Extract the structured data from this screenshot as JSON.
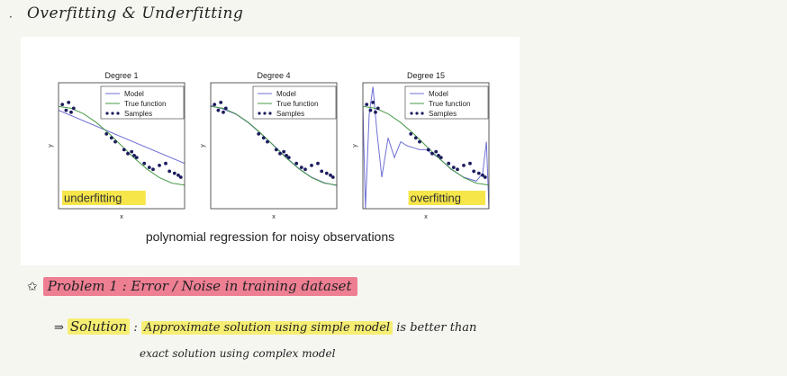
{
  "note": {
    "bullet": "·",
    "title": "Overfitting & Underfitting"
  },
  "figure": {
    "caption": "polynomial regression for noisy observations",
    "legend": {
      "model": "Model",
      "true_function": "True function",
      "samples": "Samples"
    },
    "axis": {
      "x": "x",
      "y": "y"
    },
    "colors": {
      "model": "#6f6fd6",
      "true_function": "#4a9a4a",
      "samples": "#1c1c5e",
      "highlight": "#f6e64a"
    }
  },
  "chart_data": [
    {
      "type": "line",
      "title": "Degree 1",
      "xlabel": "x",
      "ylabel": "y",
      "annotation": "underfitting",
      "legend_position": "top-right",
      "series": [
        {
          "name": "Model",
          "x": [
            0.0,
            1.0
          ],
          "y": [
            0.9,
            -0.45
          ]
        },
        {
          "name": "True function",
          "x": [
            0.0,
            0.1,
            0.2,
            0.3,
            0.4,
            0.5,
            0.6,
            0.7,
            0.8,
            0.9,
            1.0
          ],
          "y": [
            1.0,
            0.95,
            0.81,
            0.59,
            0.31,
            0.0,
            -0.31,
            -0.59,
            -0.81,
            -0.95,
            -1.0
          ]
        }
      ],
      "samples": {
        "name": "Samples",
        "x": [
          0.03,
          0.06,
          0.08,
          0.1,
          0.12,
          0.38,
          0.42,
          0.45,
          0.52,
          0.55,
          0.58,
          0.6,
          0.62,
          0.68,
          0.72,
          0.75,
          0.8,
          0.85,
          0.88,
          0.92,
          0.95,
          0.97
        ],
        "y": [
          1.05,
          0.9,
          1.1,
          0.85,
          0.95,
          0.3,
          0.2,
          0.1,
          -0.1,
          -0.2,
          -0.15,
          -0.25,
          -0.3,
          -0.45,
          -0.55,
          -0.6,
          -0.5,
          -0.45,
          -0.65,
          -0.7,
          -0.75,
          -0.8
        ]
      }
    },
    {
      "type": "line",
      "title": "Degree 4",
      "xlabel": "x",
      "ylabel": "y",
      "legend_position": "top-right",
      "series": [
        {
          "name": "Model",
          "x": [
            0.0,
            0.1,
            0.2,
            0.3,
            0.4,
            0.5,
            0.6,
            0.7,
            0.8,
            0.9,
            1.0
          ],
          "y": [
            1.02,
            0.93,
            0.8,
            0.58,
            0.3,
            0.01,
            -0.3,
            -0.58,
            -0.8,
            -0.94,
            -1.01
          ]
        },
        {
          "name": "True function",
          "x": [
            0.0,
            0.1,
            0.2,
            0.3,
            0.4,
            0.5,
            0.6,
            0.7,
            0.8,
            0.9,
            1.0
          ],
          "y": [
            1.0,
            0.95,
            0.81,
            0.59,
            0.31,
            0.0,
            -0.31,
            -0.59,
            -0.81,
            -0.95,
            -1.0
          ]
        }
      ],
      "samples": {
        "name": "Samples",
        "x": [
          0.03,
          0.06,
          0.08,
          0.1,
          0.12,
          0.38,
          0.42,
          0.45,
          0.52,
          0.55,
          0.58,
          0.6,
          0.62,
          0.68,
          0.72,
          0.75,
          0.8,
          0.85,
          0.88,
          0.92,
          0.95,
          0.97
        ],
        "y": [
          1.05,
          0.9,
          1.1,
          0.85,
          0.95,
          0.3,
          0.2,
          0.1,
          -0.1,
          -0.2,
          -0.15,
          -0.25,
          -0.3,
          -0.45,
          -0.55,
          -0.6,
          -0.5,
          -0.45,
          -0.65,
          -0.7,
          -0.75,
          -0.8
        ]
      }
    },
    {
      "type": "line",
      "title": "Degree 15",
      "xlabel": "x",
      "ylabel": "y",
      "annotation": "overfitting",
      "legend_position": "top-right",
      "series": [
        {
          "name": "Model",
          "x": [
            0.0,
            0.02,
            0.05,
            0.08,
            0.11,
            0.15,
            0.2,
            0.25,
            0.3,
            0.35,
            0.4,
            0.45,
            0.5,
            0.6,
            0.7,
            0.8,
            0.9,
            0.95,
            0.98,
            1.0
          ],
          "y": [
            1.0,
            -1.6,
            0.8,
            1.5,
            0.4,
            -0.8,
            0.2,
            -0.3,
            0.1,
            0.0,
            -0.05,
            -0.1,
            -0.1,
            -0.3,
            -0.6,
            -0.8,
            -0.9,
            -0.7,
            0.1,
            -1.6
          ]
        },
        {
          "name": "True function",
          "x": [
            0.0,
            0.1,
            0.2,
            0.3,
            0.4,
            0.5,
            0.6,
            0.7,
            0.8,
            0.9,
            1.0
          ],
          "y": [
            1.0,
            0.95,
            0.81,
            0.59,
            0.31,
            0.0,
            -0.31,
            -0.59,
            -0.81,
            -0.95,
            -1.0
          ]
        }
      ],
      "samples": {
        "name": "Samples",
        "x": [
          0.03,
          0.06,
          0.08,
          0.1,
          0.12,
          0.38,
          0.42,
          0.45,
          0.52,
          0.55,
          0.58,
          0.6,
          0.62,
          0.68,
          0.72,
          0.75,
          0.8,
          0.85,
          0.88,
          0.92,
          0.95,
          0.97
        ],
        "y": [
          1.05,
          0.9,
          1.1,
          0.85,
          0.95,
          0.3,
          0.2,
          0.1,
          -0.1,
          -0.2,
          -0.15,
          -0.25,
          -0.3,
          -0.45,
          -0.55,
          -0.6,
          -0.5,
          -0.45,
          -0.65,
          -0.7,
          -0.75,
          -0.8
        ]
      }
    }
  ],
  "problem": {
    "star": "✩",
    "text": "Problem 1 : Error / Noise in training dataset"
  },
  "solution": {
    "arrow": "⇒",
    "label": "Solution",
    "colon": " : ",
    "highlight": "Approximate solution using simple model",
    "rest": " is better than",
    "line2": "exact solution using complex model"
  }
}
